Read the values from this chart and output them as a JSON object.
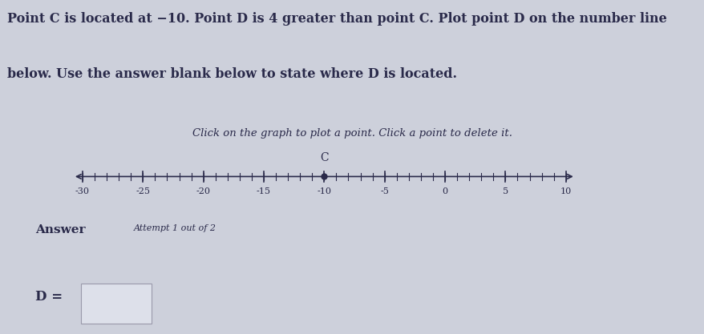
{
  "background_color": "#cdd0db",
  "top_bg": "#e8e6e0",
  "title_line1": "Point C is located at −10. Point D is 4 greater than point C. Plot point D on the number line",
  "title_line2": "below. Use the answer blank below to state where D is located.",
  "subtitle_text": "Click on the graph to plot a point. Click a point to delete it.",
  "number_line_min": -30,
  "number_line_max": 10,
  "tick_major": [
    -30,
    -25,
    -20,
    -15,
    -10,
    -5,
    0,
    5,
    10
  ],
  "tick_minor_step": 1,
  "point_C": -10,
  "point_C_label": "C",
  "answer_label": "Answer",
  "answer_subtext": "Attempt 1 out of 2",
  "d_label": "D =",
  "text_color": "#2a2a4a",
  "line_color": "#2a2a4a",
  "point_color": "#2a2a4a",
  "title_fontsize": 11.5,
  "subtitle_fontsize": 9.5,
  "tick_label_fontsize": 8,
  "answer_fontsize": 11,
  "d_fontsize": 12
}
